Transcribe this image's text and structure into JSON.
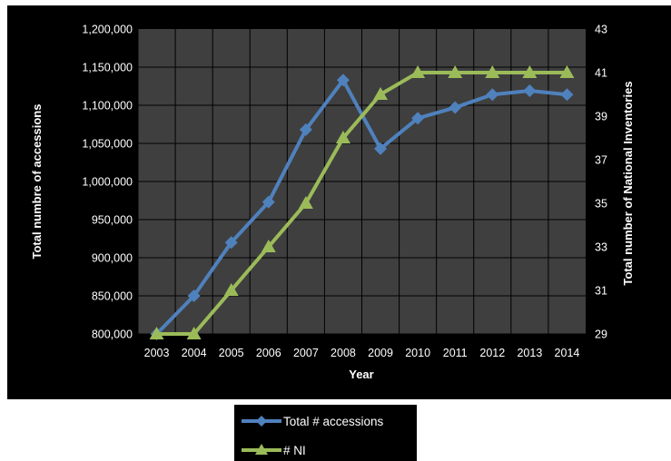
{
  "colors": {
    "background": "#000000",
    "plot_area": "#3f3f3f",
    "gridline": "#000000",
    "series_accessions": "#4f81bd",
    "series_ni": "#9bbb59",
    "text": "#ffffff"
  },
  "chart_data": {
    "type": "line",
    "title": "",
    "xlabel": "Year",
    "ylabel": "Total numbre of accessions",
    "y2label": "Total number of National Inventories",
    "categories": [
      "2003",
      "2004",
      "2005",
      "2006",
      "2007",
      "2008",
      "2009",
      "2010",
      "2011",
      "2012",
      "2013",
      "2014"
    ],
    "ylim": [
      800000,
      1200000
    ],
    "y_ticks": [
      800000,
      850000,
      900000,
      950000,
      1000000,
      1050000,
      1100000,
      1150000,
      1200000
    ],
    "y_tick_labels": [
      "800,000",
      "850,000",
      "900,000",
      "950,000",
      "1,000,000",
      "1,050,000",
      "1,100,000",
      "1,150,000",
      "1,200,000"
    ],
    "y2lim": [
      29,
      43
    ],
    "y2_ticks": [
      29,
      31,
      33,
      35,
      37,
      39,
      41,
      43
    ],
    "y2_tick_labels": [
      "29",
      "31",
      "33",
      "35",
      "37",
      "39",
      "41",
      "43"
    ],
    "grid": true,
    "legend_position": "bottom",
    "series": [
      {
        "name": "Total # accessions",
        "axis": "left",
        "marker": "diamond",
        "color": "#4f81bd",
        "values": [
          800000,
          850000,
          920000,
          973000,
          1068000,
          1133000,
          1043000,
          1083000,
          1097000,
          1114000,
          1119000,
          1114000
        ]
      },
      {
        "name": "# NI",
        "axis": "right",
        "marker": "triangle",
        "color": "#9bbb59",
        "values": [
          29,
          29,
          31,
          33,
          35,
          38,
          40,
          41,
          41,
          41,
          41,
          41
        ]
      }
    ]
  }
}
